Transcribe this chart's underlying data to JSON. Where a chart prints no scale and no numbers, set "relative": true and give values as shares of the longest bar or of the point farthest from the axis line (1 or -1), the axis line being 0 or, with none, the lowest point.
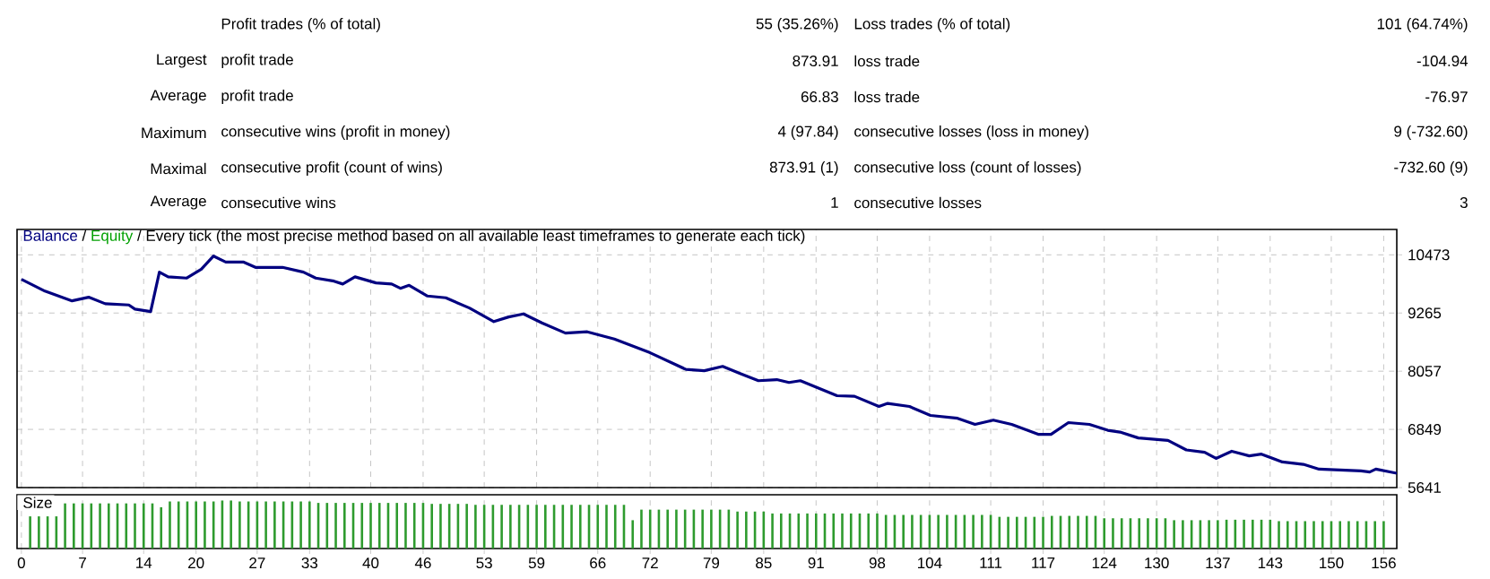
{
  "chart_data": [
    {
      "type": "other",
      "annotations": [
        "Profit trades (% of total)",
        "55 (35.26%)",
        "Loss trades (% of total)",
        "101 (64.74%)",
        "Largest",
        "profit trade",
        "873.91",
        "loss trade",
        "-104.94",
        "Average",
        "profit trade",
        "66.83",
        "loss trade",
        "-76.97",
        "Maximum",
        "consecutive wins (profit in money)",
        "4 (97.84)",
        "consecutive losses (loss in money)",
        "9 (-732.60)",
        "Maximal",
        "consecutive profit (count of wins)",
        "873.91 (1)",
        "consecutive loss (count of losses)",
        "-732.60 (9)",
        "Average",
        "consecutive wins",
        "1",
        "consecutive losses",
        "3"
      ]
    },
    {
      "type": "line",
      "title": "Every tick (the most precise method based on all available least timeframes to generate each tick)",
      "x": [
        0,
        2.7,
        5.8,
        7.7,
        9.6,
        12.3,
        13,
        14.8,
        15.8,
        16.8,
        18.9,
        20.6,
        22,
        23.4,
        25.4,
        26.8,
        29.9,
        32.3,
        33.7,
        35.8,
        36.8,
        38.2,
        40.6,
        42.4,
        43.4,
        44.4,
        46.5,
        48.6,
        51.3,
        54.1,
        55.8,
        57.5,
        59.6,
        62.3,
        64.8,
        67.9,
        72,
        76.1,
        78.2,
        80.3,
        82.3,
        84.4,
        86.5,
        87.9,
        89.2,
        93.4,
        95.4,
        98.2,
        99.2,
        101.7,
        104.1,
        107.2,
        109.2,
        111.3,
        113.4,
        116.5,
        117.9,
        119.9,
        122.3,
        124.4,
        125.8,
        127.9,
        131.3,
        133.4,
        135.5,
        136.8,
        138.6,
        140.6,
        142,
        144.4,
        146.8,
        148.6,
        153.4,
        154.4,
        155.1,
        157.5
      ],
      "series": [
        {
          "name": "Balance",
          "color": "#000080",
          "values": [
            9964,
            9719,
            9518,
            9593,
            9458,
            9432,
            9347,
            9295,
            10113,
            10016,
            9990,
            10176,
            10447,
            10324,
            10324,
            10213,
            10213,
            10113,
            9990,
            9927,
            9867,
            10016,
            9890,
            9867,
            9778,
            9841,
            9618,
            9581,
            9369,
            9087,
            9183,
            9247,
            9061,
            8849,
            8875,
            8726,
            8440,
            8094,
            8068,
            8157,
            8009,
            7860,
            7882,
            7823,
            7860,
            7548,
            7537,
            7325,
            7388,
            7325,
            7139,
            7080,
            6953,
            7042,
            6953,
            6745,
            6745,
            6990,
            6953,
            6830,
            6793,
            6671,
            6619,
            6422,
            6373,
            6247,
            6396,
            6299,
            6336,
            6173,
            6124,
            6024,
            5987,
            5964,
            6024,
            5938
          ]
        },
        {
          "name": "Equity",
          "color": "#00a000",
          "values": [
            null,
            null,
            null,
            null,
            null,
            null,
            null,
            null,
            null,
            null,
            null,
            null,
            null,
            null,
            null,
            null,
            null,
            null,
            null,
            null,
            null,
            null,
            null,
            null,
            null,
            null,
            null,
            null,
            null,
            null,
            null,
            null,
            null,
            null,
            null,
            null,
            null,
            null,
            null,
            null,
            null,
            null,
            null,
            null,
            null,
            null,
            null,
            null,
            null,
            null,
            null,
            null,
            null,
            null,
            null,
            null,
            null,
            null,
            null,
            null,
            null,
            null,
            null,
            null,
            null,
            null,
            null,
            null,
            null,
            null,
            null,
            null,
            null,
            null,
            null,
            null
          ]
        }
      ],
      "annotations": [
        "/",
        "/"
      ],
      "xlim": [
        -0.5,
        157.5
      ],
      "ylim": [
        5641,
        11000
      ],
      "xticks": [
        {
          "value": 0,
          "label": null
        },
        {
          "value": 7,
          "label": null
        },
        {
          "value": 14,
          "label": null
        },
        {
          "value": 20,
          "label": null
        },
        {
          "value": 27,
          "label": null
        },
        {
          "value": 33,
          "label": null
        },
        {
          "value": 40,
          "label": null
        },
        {
          "value": 46,
          "label": null
        },
        {
          "value": 53,
          "label": null
        },
        {
          "value": 59,
          "label": null
        },
        {
          "value": 66,
          "label": null
        },
        {
          "value": 72,
          "label": null
        },
        {
          "value": 79,
          "label": null
        },
        {
          "value": 85,
          "label": null
        },
        {
          "value": 91,
          "label": null
        },
        {
          "value": 98,
          "label": null
        },
        {
          "value": 104,
          "label": null
        },
        {
          "value": 111,
          "label": null
        },
        {
          "value": 117,
          "label": null
        },
        {
          "value": 124,
          "label": null
        },
        {
          "value": 130,
          "label": null
        },
        {
          "value": 137,
          "label": null
        },
        {
          "value": 143,
          "label": null
        },
        {
          "value": 150,
          "label": null
        },
        {
          "value": 156,
          "label": null
        }
      ],
      "yticks": [
        5641,
        6849,
        8057,
        9265,
        10473
      ],
      "grid": true,
      "tick_labels": "y"
    },
    {
      "type": "bar",
      "title": "Size",
      "color": "#2e9b2e",
      "relative": true,
      "x": [
        1,
        2,
        3,
        4,
        5,
        6,
        7,
        8,
        9,
        10,
        11,
        12,
        13,
        14,
        15,
        16,
        17,
        18,
        19,
        20,
        21,
        22,
        23,
        24,
        25,
        26,
        27,
        28,
        29,
        30,
        31,
        32,
        33,
        34,
        35,
        36,
        37,
        38,
        39,
        40,
        41,
        42,
        43,
        44,
        45,
        46,
        47,
        48,
        49,
        50,
        51,
        52,
        53,
        54,
        55,
        56,
        57,
        58,
        59,
        60,
        61,
        62,
        63,
        64,
        65,
        66,
        67,
        68,
        69,
        70,
        71,
        72,
        73,
        74,
        75,
        76,
        77,
        78,
        79,
        80,
        81,
        82,
        83,
        84,
        85,
        86,
        87,
        88,
        89,
        90,
        91,
        92,
        93,
        94,
        95,
        96,
        97,
        98,
        99,
        100,
        101,
        102,
        103,
        104,
        105,
        106,
        107,
        108,
        109,
        110,
        111,
        112,
        113,
        114,
        115,
        116,
        117,
        118,
        119,
        120,
        121,
        122,
        123,
        124,
        125,
        126,
        127,
        128,
        129,
        130,
        131,
        132,
        133,
        134,
        135,
        136,
        137,
        138,
        139,
        140,
        141,
        142,
        143,
        144,
        145,
        146,
        147,
        148,
        149,
        150,
        151,
        152,
        153,
        154,
        155,
        156
      ],
      "values": [
        0.67,
        0.67,
        0.67,
        0.67,
        0.94,
        0.94,
        0.94,
        0.94,
        0.94,
        0.94,
        0.94,
        0.94,
        0.94,
        0.94,
        0.94,
        0.86,
        0.98,
        0.98,
        0.98,
        0.98,
        0.98,
        0.98,
        1,
        1,
        0.98,
        0.98,
        0.98,
        0.98,
        0.98,
        0.98,
        0.98,
        0.98,
        0.98,
        0.95,
        0.95,
        0.95,
        0.95,
        0.95,
        0.95,
        0.95,
        0.95,
        0.95,
        0.95,
        0.95,
        0.95,
        0.95,
        0.93,
        0.93,
        0.93,
        0.93,
        0.93,
        0.91,
        0.91,
        0.91,
        0.91,
        0.91,
        0.91,
        0.91,
        0.91,
        0.91,
        0.91,
        0.91,
        0.91,
        0.91,
        0.91,
        0.91,
        0.91,
        0.91,
        0.91,
        0.59,
        0.81,
        0.81,
        0.81,
        0.81,
        0.81,
        0.81,
        0.81,
        0.81,
        0.81,
        0.81,
        0.81,
        0.77,
        0.77,
        0.77,
        0.77,
        0.73,
        0.73,
        0.73,
        0.73,
        0.73,
        0.73,
        0.73,
        0.73,
        0.73,
        0.73,
        0.73,
        0.73,
        0.73,
        0.7,
        0.7,
        0.7,
        0.7,
        0.7,
        0.7,
        0.7,
        0.7,
        0.7,
        0.7,
        0.7,
        0.7,
        0.7,
        0.66,
        0.66,
        0.66,
        0.66,
        0.66,
        0.66,
        0.68,
        0.68,
        0.68,
        0.68,
        0.68,
        0.68,
        0.63,
        0.63,
        0.63,
        0.63,
        0.63,
        0.63,
        0.63,
        0.63,
        0.59,
        0.59,
        0.59,
        0.59,
        0.59,
        0.59,
        0.6,
        0.6,
        0.6,
        0.6,
        0.6,
        0.6,
        0.57,
        0.57,
        0.57,
        0.57,
        0.57,
        0.57,
        0.57,
        0.57,
        0.57,
        0.57,
        0.57,
        0.57,
        0.57
      ],
      "xlim": [
        -0.5,
        157.5
      ],
      "xticks": [
        0,
        7,
        14,
        20,
        27,
        33,
        40,
        46,
        53,
        59,
        66,
        72,
        79,
        85,
        91,
        98,
        104,
        111,
        117,
        124,
        130,
        137,
        143,
        150,
        156
      ],
      "grid": "x",
      "tick_labels": "x"
    }
  ]
}
